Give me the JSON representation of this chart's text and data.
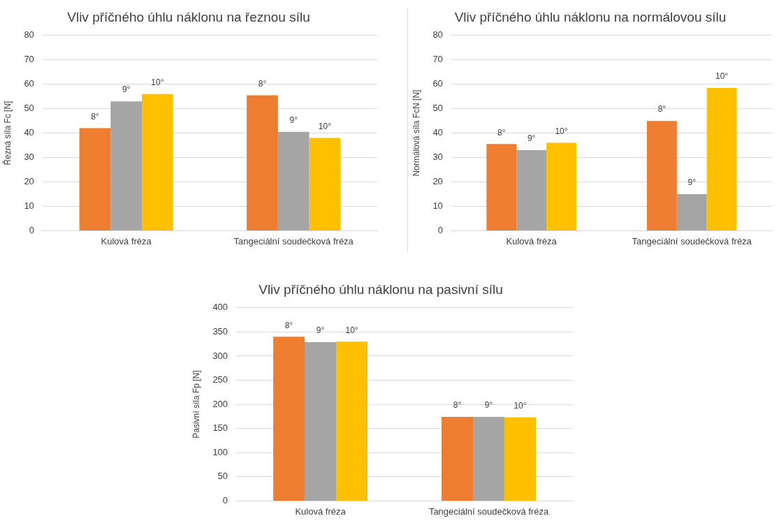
{
  "chart_data": [
    {
      "type": "bar",
      "title": "Vliv příčného úhlu náklonu na řeznou sílu",
      "ylabel": "Řezná síla Fc [N]",
      "categories": [
        "Kulová fréza",
        "Tangeciální soudečková fréza"
      ],
      "series": [
        {
          "name": "8°",
          "color": "#ed7d31",
          "values": [
            42,
            55.5
          ]
        },
        {
          "name": "9°",
          "color": "#a5a5a5",
          "values": [
            53,
            40.5
          ]
        },
        {
          "name": "10°",
          "color": "#ffc000",
          "values": [
            56,
            38
          ]
        }
      ],
      "ylim": [
        0,
        80
      ],
      "yticks": [
        0,
        10,
        20,
        30,
        40,
        50,
        60,
        70,
        80
      ],
      "grid": "y",
      "legend": false
    },
    {
      "type": "bar",
      "title": "Vliv příčného úhlu náklonu na normálovou sílu",
      "ylabel": "Normálová síla FcN [N]",
      "categories": [
        "Kulová fréza",
        "Tangeciální soudečková fréza"
      ],
      "series": [
        {
          "name": "8°",
          "color": "#ed7d31",
          "values": [
            35.5,
            45
          ]
        },
        {
          "name": "9°",
          "color": "#a5a5a5",
          "values": [
            33,
            15
          ]
        },
        {
          "name": "10°",
          "color": "#ffc000",
          "values": [
            36,
            58.5
          ]
        }
      ],
      "ylim": [
        0,
        80
      ],
      "yticks": [
        0,
        10,
        20,
        30,
        40,
        50,
        60,
        70,
        80
      ],
      "grid": "y",
      "legend": false
    },
    {
      "type": "bar",
      "title": "Vliv příčného úhlu náklonu na pasivní sílu",
      "ylabel": "Pasivní síla Fp [N]",
      "categories": [
        "Kulová fréza",
        "Tangeciální soudečková fréza"
      ],
      "series": [
        {
          "name": "8°",
          "color": "#ed7d31",
          "values": [
            340,
            174
          ]
        },
        {
          "name": "9°",
          "color": "#a5a5a5",
          "values": [
            329,
            174
          ]
        },
        {
          "name": "10°",
          "color": "#ffc000",
          "values": [
            330,
            173
          ]
        }
      ],
      "ylim": [
        0,
        400
      ],
      "yticks": [
        0,
        50,
        100,
        150,
        200,
        250,
        300,
        350,
        400
      ],
      "grid": "y",
      "legend": false
    }
  ]
}
